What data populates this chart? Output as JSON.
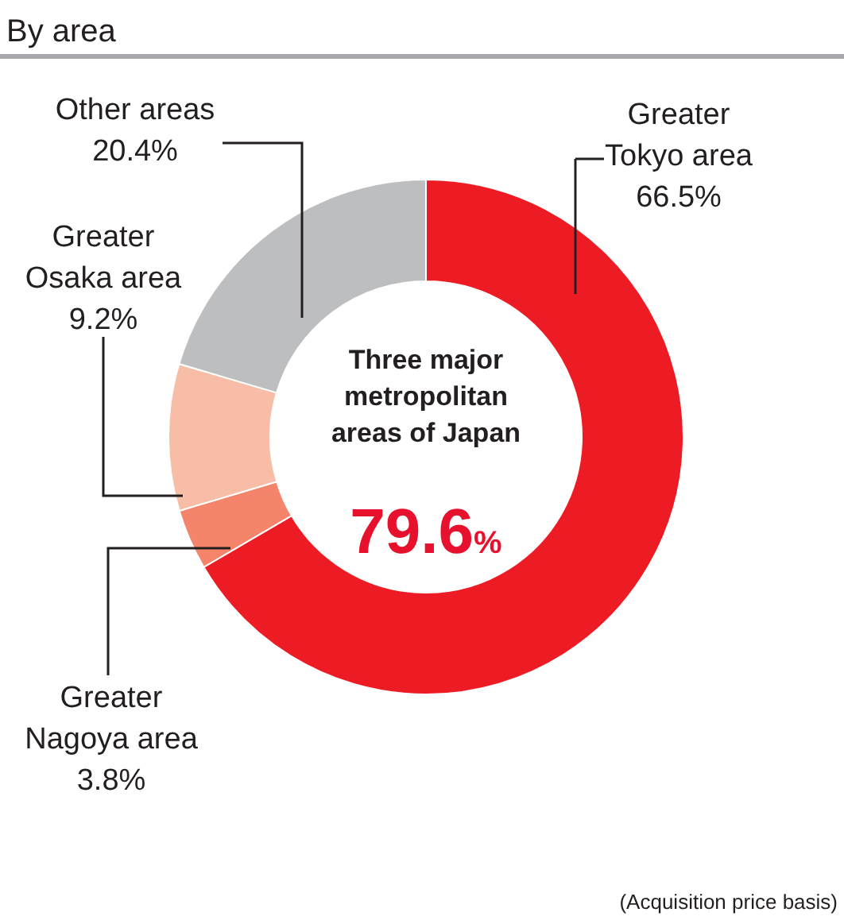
{
  "chart_data": {
    "type": "donut",
    "title": "By area",
    "categories": [
      "Greater Tokyo area",
      "Greater Nagoya area",
      "Greater Osaka area",
      "Other areas"
    ],
    "values": [
      66.5,
      3.8,
      9.2,
      20.4
    ],
    "colors": [
      "#ed1c24",
      "#f4856a",
      "#f8bda6",
      "#bcbec0"
    ],
    "value_labels": [
      "66.5%",
      "3.8%",
      "9.2%",
      "20.4%"
    ],
    "annotations": [
      "Three major metropolitan areas of Japan",
      "79.6%",
      "(Acquisition price basis)"
    ]
  }
}
